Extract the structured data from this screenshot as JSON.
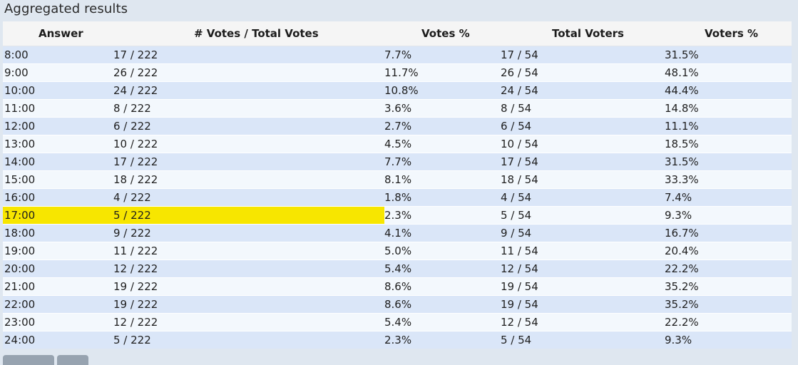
{
  "title": "Aggregated results",
  "headers": {
    "answer": "Answer",
    "votes": "# Votes / Total Votes",
    "votes_pct": "Votes %",
    "total_voters": "Total Voters",
    "voters_pct": "Voters %"
  },
  "rows": [
    {
      "answer": "8:00",
      "votes": "17 / 222",
      "votes_pct": "7.7%",
      "voters": "17 / 54",
      "voters_pct": "31.5%"
    },
    {
      "answer": "9:00",
      "votes": "26 / 222",
      "votes_pct": "11.7%",
      "voters": "26 / 54",
      "voters_pct": "48.1%"
    },
    {
      "answer": "10:00",
      "votes": "24 / 222",
      "votes_pct": "10.8%",
      "voters": "24 / 54",
      "voters_pct": "44.4%"
    },
    {
      "answer": "11:00",
      "votes": "8 / 222",
      "votes_pct": "3.6%",
      "voters": "8 / 54",
      "voters_pct": "14.8%"
    },
    {
      "answer": "12:00",
      "votes": "6 / 222",
      "votes_pct": "2.7%",
      "voters": "6 / 54",
      "voters_pct": "11.1%"
    },
    {
      "answer": "13:00",
      "votes": "10 / 222",
      "votes_pct": "4.5%",
      "voters": "10 / 54",
      "voters_pct": "18.5%"
    },
    {
      "answer": "14:00",
      "votes": "17 / 222",
      "votes_pct": "7.7%",
      "voters": "17 / 54",
      "voters_pct": "31.5%"
    },
    {
      "answer": "15:00",
      "votes": "18 / 222",
      "votes_pct": "8.1%",
      "voters": "18 / 54",
      "voters_pct": "33.3%"
    },
    {
      "answer": "16:00",
      "votes": "4 / 222",
      "votes_pct": "1.8%",
      "voters": "4 / 54",
      "voters_pct": "7.4%"
    },
    {
      "answer": "17:00",
      "votes": "5 / 222",
      "votes_pct": "2.3%",
      "voters": "5 / 54",
      "voters_pct": "9.3%",
      "highlighted": true
    },
    {
      "answer": "18:00",
      "votes": "9 / 222",
      "votes_pct": "4.1%",
      "voters": "9 / 54",
      "voters_pct": "16.7%"
    },
    {
      "answer": "19:00",
      "votes": "11 / 222",
      "votes_pct": "5.0%",
      "voters": "11 / 54",
      "voters_pct": "20.4%"
    },
    {
      "answer": "20:00",
      "votes": "12 / 222",
      "votes_pct": "5.4%",
      "voters": "12 / 54",
      "voters_pct": "22.2%"
    },
    {
      "answer": "21:00",
      "votes": "19 / 222",
      "votes_pct": "8.6%",
      "voters": "19 / 54",
      "voters_pct": "35.2%"
    },
    {
      "answer": "22:00",
      "votes": "19 / 222",
      "votes_pct": "8.6%",
      "voters": "19 / 54",
      "voters_pct": "35.2%"
    },
    {
      "answer": "23:00",
      "votes": "12 / 222",
      "votes_pct": "5.4%",
      "voters": "12 / 54",
      "voters_pct": "22.2%"
    },
    {
      "answer": "24:00",
      "votes": "5 / 222",
      "votes_pct": "2.3%",
      "voters": "5 / 54",
      "voters_pct": "9.3%"
    }
  ],
  "colors": {
    "row_odd": "#dae6f8",
    "row_even": "#f3f8fd",
    "highlight": "#f7e600",
    "panel_bg": "#dfe7f0"
  }
}
